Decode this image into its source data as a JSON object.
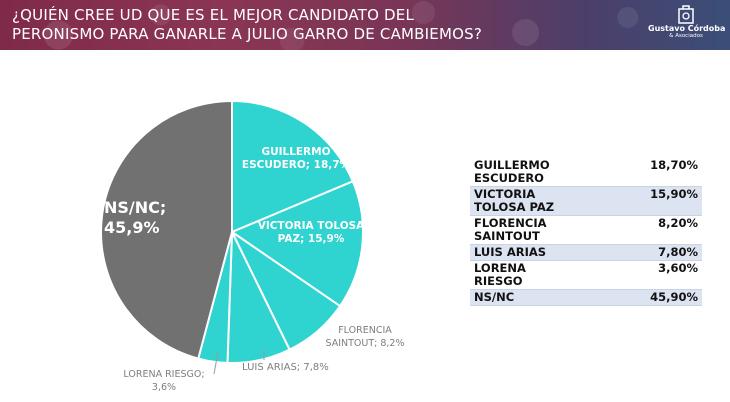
{
  "header": {
    "title_line1": "¿QUIÉN CREE UD QUE ES EL MEJOR CANDIDATO DEL",
    "title_line2": "PERONISMO PARA GANARLE A JULIO GARRO DE CAMBIEMOS?",
    "logo_name": "Gustavo Córdoba",
    "logo_sub": "& Asociados"
  },
  "colors": {
    "accent": "#2fd3cf",
    "gray": "#717171",
    "banner_left": "#7f2a48",
    "banner_right": "#3b4e78"
  },
  "chart_data": {
    "type": "pie",
    "slices": [
      {
        "label": "GUILLERMO ESCUDERO",
        "value": 18.7,
        "display": "GUILLERMO\nESCUDERO; 18,7%",
        "color": "#2fd3cf"
      },
      {
        "label": "VICTORIA TOLOSA PAZ",
        "value": 15.9,
        "display": "VICTORIA TOLOSA\nPAZ; 15,9%",
        "color": "#2fd3cf"
      },
      {
        "label": "FLORENCIA SAINTOUT",
        "value": 8.2,
        "display": "FLORENCIA\nSAINTOUT; 8,2%",
        "color": "#2fd3cf"
      },
      {
        "label": "LUIS ARIAS",
        "value": 7.8,
        "display": "LUIS ARIAS; 7,8%",
        "color": "#2fd3cf"
      },
      {
        "label": "LORENA RIESGO",
        "value": 3.6,
        "display": "LORENA RIESGO;\n3,6%",
        "color": "#2fd3cf"
      },
      {
        "label": "NS/NC",
        "value": 45.9,
        "display": "NS/NC;\n45,9%",
        "color": "#717171"
      }
    ]
  },
  "table": {
    "rows": [
      {
        "name": "GUILLERMO ESCUDERO",
        "value": "18,70%"
      },
      {
        "name": "VICTORIA TOLOSA PAZ",
        "value": "15,90%"
      },
      {
        "name": "FLORENCIA SAINTOUT",
        "value": "8,20%"
      },
      {
        "name": "LUIS ARIAS",
        "value": "7,80%"
      },
      {
        "name": "LORENA RIESGO",
        "value": "3,60%"
      },
      {
        "name": "NS/NC",
        "value": "45,90%"
      }
    ]
  }
}
